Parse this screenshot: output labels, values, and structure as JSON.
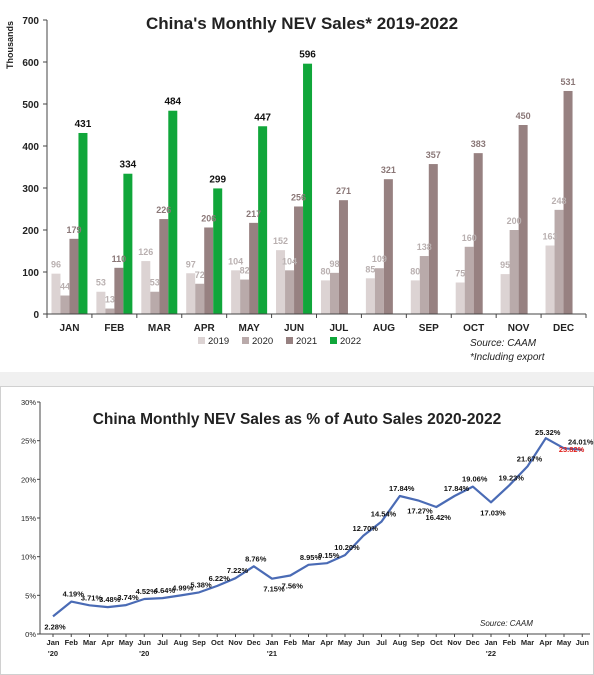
{
  "chart_data": [
    {
      "type": "bar",
      "title": "China's Monthly NEV Sales* 2019-2022",
      "ylabel": "Thousands",
      "ylim": [
        0,
        700
      ],
      "yticks": [
        0,
        100,
        200,
        300,
        400,
        500,
        600,
        700
      ],
      "categories": [
        "JAN",
        "FEB",
        "MAR",
        "APR",
        "MAY",
        "JUN",
        "JUL",
        "AUG",
        "SEP",
        "OCT",
        "NOV",
        "DEC"
      ],
      "series": [
        {
          "name": "2019",
          "color": "#dcd3d3",
          "values": [
            96,
            53,
            126,
            97,
            104,
            152,
            80,
            85,
            80,
            75,
            95,
            163
          ]
        },
        {
          "name": "2020",
          "color": "#b9aaaa",
          "values": [
            44,
            13,
            53,
            72,
            82,
            104,
            98,
            109,
            138,
            160,
            200,
            248
          ]
        },
        {
          "name": "2021",
          "color": "#978181",
          "values": [
            179,
            110,
            226,
            206,
            217,
            256,
            271,
            321,
            357,
            383,
            450,
            531
          ]
        },
        {
          "name": "2022",
          "color": "#10a63a",
          "values": [
            431,
            334,
            484,
            299,
            447,
            596,
            null,
            null,
            null,
            null,
            null,
            null
          ]
        }
      ],
      "value_labels": [
        [
          "96",
          "53",
          "126",
          "97",
          "104",
          "152",
          "80",
          "85",
          "80",
          "75",
          "95",
          "163"
        ],
        [
          "44",
          "13",
          "53",
          "72",
          "82",
          "104",
          "98",
          "109",
          "138",
          "160",
          "200",
          "248"
        ],
        [
          "179",
          "110",
          "226",
          "206",
          "217",
          "256",
          "271",
          "321",
          "357",
          "383",
          "450",
          "531"
        ],
        [
          "431",
          "334",
          "484",
          "299",
          "447",
          "596",
          "",
          "",
          "",
          "",
          "",
          ""
        ]
      ],
      "legend_placement": "bottom-center",
      "grid": false,
      "source": "Source: CAAM",
      "footnote": "*Including export"
    },
    {
      "type": "line",
      "title": "China Monthly NEV Sales as % of Auto Sales 2020-2022",
      "ylim": [
        0,
        30
      ],
      "yticks": [
        "0%",
        "5%",
        "10%",
        "15%",
        "20%",
        "25%",
        "30%"
      ],
      "x": [
        "Jan",
        "Feb",
        "Mar",
        "Apr",
        "May",
        "Jun",
        "Jul",
        "Aug",
        "Sep",
        "Oct",
        "Nov",
        "Dec",
        "Jan",
        "Feb",
        "Mar",
        "Apr",
        "May",
        "Jun",
        "Jul",
        "Aug",
        "Sep",
        "Oct",
        "Nov",
        "Dec",
        "Jan",
        "Feb",
        "Mar",
        "Apr",
        "May",
        "Jun"
      ],
      "x_years": [
        "'20",
        "'20",
        "'21",
        "'22"
      ],
      "x_year_positions": [
        0,
        5,
        12,
        24
      ],
      "series": [
        {
          "color": "#4a6bb5",
          "values": [
            2.28,
            4.19,
            3.71,
            3.48,
            3.74,
            4.52,
            4.64,
            4.99,
            5.38,
            6.22,
            7.22,
            8.76,
            7.15,
            7.56,
            8.95,
            9.15,
            10.2,
            12.7,
            14.54,
            17.84,
            17.27,
            16.42,
            17.84,
            19.06,
            17.03,
            19.23,
            21.67,
            25.32,
            24.01,
            23.82
          ]
        }
      ],
      "data_labels": [
        "2.28%",
        "4.19%",
        "3.71%",
        "3.48%",
        "3.74%",
        "4.52%",
        "4.64%",
        "4.99%",
        "5.38%",
        "6.22%",
        "7.22%",
        "8.76%",
        "7.15%",
        "7.56%",
        "8.95%",
        "9.15%",
        "10.20%",
        "12.70%",
        "14.54%",
        "17.84%",
        "17.27%",
        "16.42%",
        "17.84%",
        "19.06%",
        "17.03%",
        "19.23%",
        "21.67%",
        "25.32%",
        "24.01%",
        "23.82%"
      ],
      "highlight_color": "#e0201b",
      "highlight_index": 29,
      "grid": false,
      "source": "Source: CAAM"
    }
  ]
}
